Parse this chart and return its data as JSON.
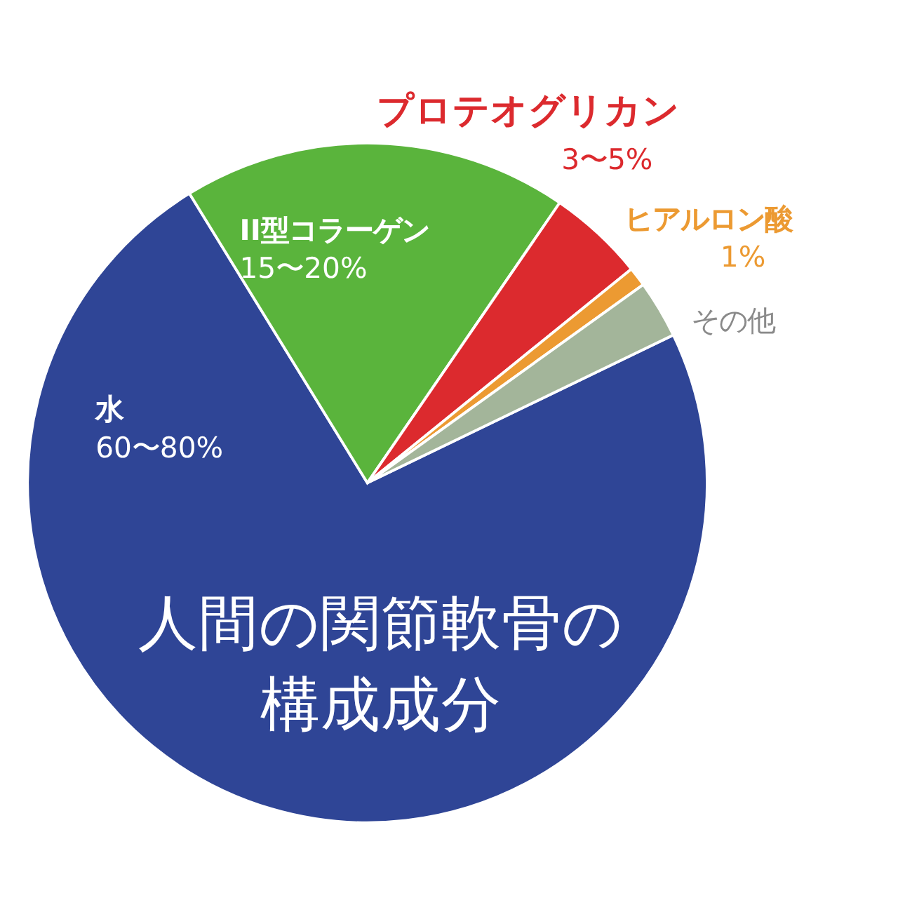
{
  "chart_data": {
    "type": "pie",
    "title": "人間の関節軟骨の構成成分",
    "categories": [
      "水",
      "II型コラーゲン",
      "プロテオグリカン",
      "ヒアルロン酸",
      "その他"
    ],
    "values": [
      80,
      20,
      5,
      1,
      3
    ],
    "colors": [
      "#2f4596",
      "#5ab43c",
      "#dc2a2e",
      "#ec9a32",
      "#a3b59a"
    ],
    "value_labels": [
      "60〜80%",
      "15〜20%",
      "3〜5%",
      "1%",
      null
    ]
  }
}
